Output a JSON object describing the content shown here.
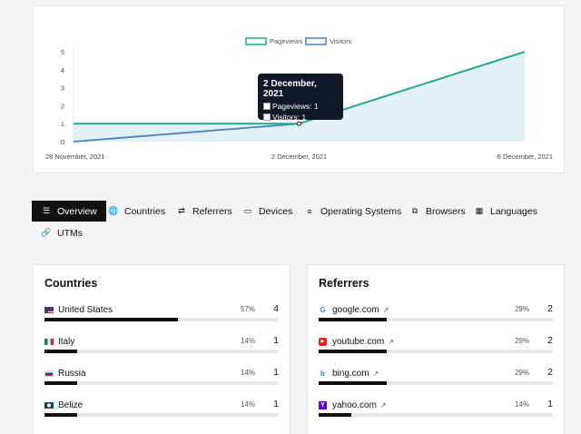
{
  "chart_data": {
    "type": "area",
    "x": [
      "28 November, 2021",
      "2 December, 2021",
      "6 December, 2021"
    ],
    "series": [
      {
        "name": "Pageviews",
        "values": [
          1,
          1,
          5
        ],
        "color": "#22a884"
      },
      {
        "name": "Visitors",
        "values": [
          0,
          1,
          5
        ],
        "color": "#4a7fc8"
      }
    ],
    "ylim": [
      0,
      5
    ],
    "yticks": [
      "0",
      "1",
      "2",
      "3",
      "4",
      "5"
    ],
    "legend": "top-center",
    "grid": false
  },
  "tooltip": {
    "title": "2 December, 2021",
    "pageviews": "Pageviews: 1",
    "visitors": "Visitors: 1"
  },
  "tabs": [
    {
      "label": "Overview",
      "icon": "list-icon",
      "active": true
    },
    {
      "label": "Countries",
      "icon": "globe-icon"
    },
    {
      "label": "Referrers",
      "icon": "shuffle-icon"
    },
    {
      "label": "Devices",
      "icon": "laptop-icon"
    },
    {
      "label": "Operating Systems",
      "icon": "server-icon"
    },
    {
      "label": "Browsers",
      "icon": "windows-icon"
    },
    {
      "label": "Languages",
      "icon": "language-icon"
    },
    {
      "label": "UTMs",
      "icon": "link-icon"
    }
  ],
  "countries": {
    "title": "Countries",
    "rows": [
      {
        "name": "United States",
        "pct": "57%",
        "count": "4",
        "share": 0.57
      },
      {
        "name": "Italy",
        "pct": "14%",
        "count": "1",
        "share": 0.14
      },
      {
        "name": "Russia",
        "pct": "14%",
        "count": "1",
        "share": 0.14
      },
      {
        "name": "Belize",
        "pct": "14%",
        "count": "1",
        "share": 0.14
      }
    ]
  },
  "referrers": {
    "title": "Referrers",
    "rows": [
      {
        "name": "google.com",
        "pct": "29%",
        "count": "2",
        "share": 0.29
      },
      {
        "name": "youtube.com",
        "pct": "29%",
        "count": "2",
        "share": 0.29
      },
      {
        "name": "bing.com",
        "pct": "29%",
        "count": "2",
        "share": 0.29
      },
      {
        "name": "yahoo.com",
        "pct": "14%",
        "count": "1",
        "share": 0.14
      }
    ]
  },
  "colors": {
    "accent": "#111111",
    "pageviews": "#22a884",
    "visitors": "#4a7fc8"
  }
}
